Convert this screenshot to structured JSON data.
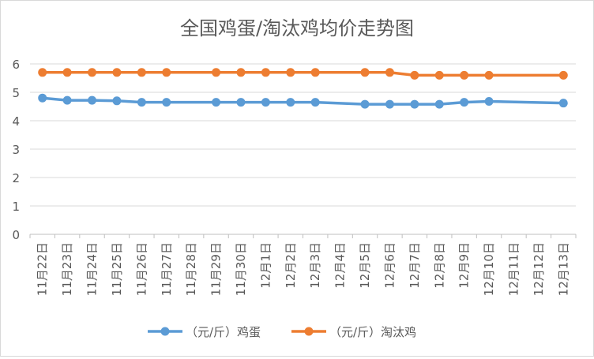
{
  "chart_data": {
    "type": "line",
    "title": "全国鸡蛋/淘汰鸡均价走势图",
    "xlabel": "",
    "ylabel": "",
    "ylim": [
      0,
      6
    ],
    "yticks": [
      0,
      1,
      2,
      3,
      4,
      5,
      6
    ],
    "grid": true,
    "legend_position": "bottom",
    "categories": [
      "11月22日",
      "11月23日",
      "11月24日",
      "11月25日",
      "11月26日",
      "11月27日",
      "11月28日",
      "11月29日",
      "11月30日",
      "12月1日",
      "12月2日",
      "12月3日",
      "12月4日",
      "12月5日",
      "12月6日",
      "12月7日",
      "12月8日",
      "12月9日",
      "12月10日",
      "12月11日",
      "12月12日",
      "12月13日"
    ],
    "series": [
      {
        "name": "（元/斤）鸡蛋",
        "color": "#5B9BD5",
        "values": [
          4.8,
          4.72,
          4.72,
          4.7,
          4.65,
          4.65,
          null,
          4.65,
          4.65,
          4.65,
          4.65,
          4.65,
          null,
          4.58,
          4.58,
          4.58,
          4.58,
          4.65,
          4.68,
          null,
          null,
          4.62
        ]
      },
      {
        "name": "（元/斤）淘汰鸡",
        "color": "#ED7D31",
        "values": [
          5.7,
          5.7,
          5.7,
          5.7,
          5.7,
          5.7,
          null,
          5.7,
          5.7,
          5.7,
          5.7,
          5.7,
          null,
          5.7,
          5.7,
          5.6,
          5.6,
          5.6,
          5.6,
          null,
          null,
          5.6
        ]
      }
    ]
  }
}
